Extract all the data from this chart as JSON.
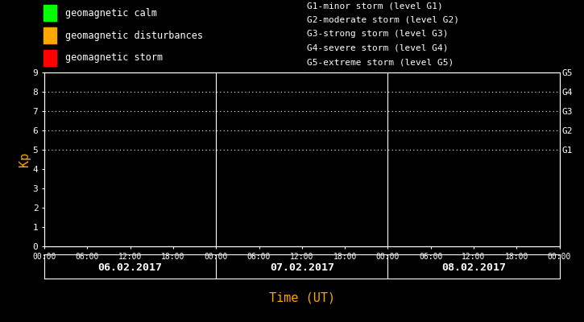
{
  "bg_color": "#000000",
  "plot_bg_color": "#000000",
  "text_color": "#ffffff",
  "orange_color": "#ffa500",
  "title": "Time (UT)",
  "ylabel": "Kp",
  "ylim": [
    0,
    9
  ],
  "yticks": [
    0,
    1,
    2,
    3,
    4,
    5,
    6,
    7,
    8,
    9
  ],
  "days": [
    "06.02.2017",
    "07.02.2017",
    "08.02.2017"
  ],
  "xtick_labels": [
    "00:00",
    "06:00",
    "12:00",
    "18:00",
    "00:00",
    "06:00",
    "12:00",
    "18:00",
    "00:00",
    "06:00",
    "12:00",
    "18:00",
    "00:00"
  ],
  "dotted_levels": [
    5,
    6,
    7,
    8,
    9
  ],
  "right_labels": [
    "G1",
    "G2",
    "G3",
    "G4",
    "G5"
  ],
  "right_label_yvals": [
    5,
    6,
    7,
    8,
    9
  ],
  "legend_items": [
    {
      "color": "#00ff00",
      "label": "geomagnetic calm"
    },
    {
      "color": "#ffa500",
      "label": "geomagnetic disturbances"
    },
    {
      "color": "#ff0000",
      "label": "geomagnetic storm"
    }
  ],
  "legend_right_lines": [
    "G1-minor storm (level G1)",
    "G2-moderate storm (level G2)",
    "G3-strong storm (level G3)",
    "G4-severe storm (level G4)",
    "G5-extreme storm (level G5)"
  ],
  "dot_color": "#ffffff",
  "divider_color": "#ffffff"
}
